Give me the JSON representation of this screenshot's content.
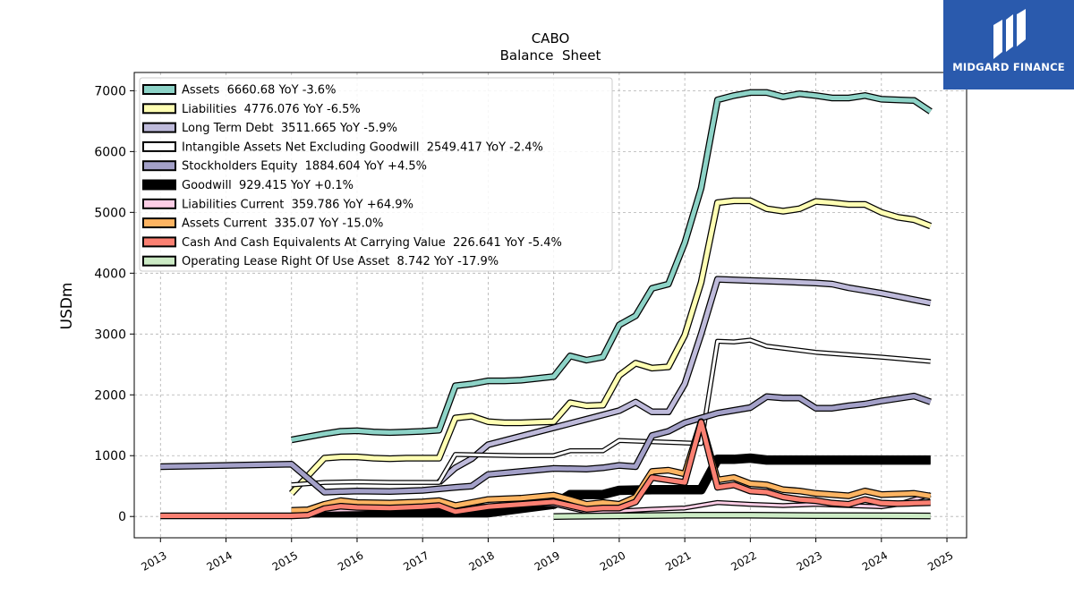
{
  "chart_data": {
    "type": "line",
    "title": "CABO",
    "subtitle": "Balance  Sheet",
    "ylabel": "USDm",
    "xlabel": "",
    "xlim": [
      2012.6,
      2025.3
    ],
    "ylim": [
      -350,
      7300
    ],
    "yticks": [
      0,
      1000,
      2000,
      3000,
      4000,
      5000,
      6000,
      7000
    ],
    "xticks": [
      2013,
      2014,
      2015,
      2016,
      2017,
      2018,
      2019,
      2020,
      2021,
      2022,
      2023,
      2024,
      2025
    ],
    "grid": true,
    "legend_position": "upper-left",
    "series": [
      {
        "name": "Assets  6660.68 YoY -3.6%",
        "color": "#8dd3c7",
        "width": 5,
        "x": [
          2015.0,
          2015.5,
          2015.75,
          2016.0,
          2016.25,
          2016.5,
          2016.75,
          2017.0,
          2017.25,
          2017.5,
          2017.75,
          2018.0,
          2018.25,
          2018.5,
          2018.75,
          2019.0,
          2019.25,
          2019.5,
          2019.75,
          2020.0,
          2020.25,
          2020.5,
          2020.75,
          2021.0,
          2021.25,
          2021.5,
          2021.75,
          2022.0,
          2022.25,
          2022.5,
          2022.75,
          2023.0,
          2023.25,
          2023.5,
          2023.75,
          2024.0,
          2024.25,
          2024.5,
          2024.75
        ],
        "y": [
          1260,
          1360,
          1400,
          1410,
          1390,
          1380,
          1390,
          1400,
          1420,
          2150,
          2180,
          2230,
          2230,
          2240,
          2270,
          2300,
          2640,
          2570,
          2620,
          3150,
          3300,
          3750,
          3820,
          4500,
          5400,
          6850,
          6920,
          6970,
          6970,
          6900,
          6950,
          6920,
          6880,
          6880,
          6920,
          6860,
          6850,
          6840,
          6660
        ]
      },
      {
        "name": "Liabilities  4776.076 YoY -6.5%",
        "color": "#ffffb3",
        "width": 5,
        "x": [
          2015.0,
          2015.5,
          2015.75,
          2016.0,
          2016.25,
          2016.5,
          2016.75,
          2017.0,
          2017.25,
          2017.5,
          2017.75,
          2018.0,
          2018.25,
          2018.5,
          2018.75,
          2019.0,
          2019.25,
          2019.5,
          2019.75,
          2020.0,
          2020.25,
          2020.5,
          2020.75,
          2021.0,
          2021.25,
          2021.5,
          2021.75,
          2022.0,
          2022.25,
          2022.5,
          2022.75,
          2023.0,
          2023.25,
          2023.5,
          2023.75,
          2024.0,
          2024.25,
          2024.5,
          2024.75
        ],
        "y": [
          380,
          960,
          980,
          980,
          960,
          950,
          960,
          960,
          960,
          1620,
          1650,
          1560,
          1540,
          1540,
          1550,
          1560,
          1870,
          1820,
          1830,
          2320,
          2520,
          2440,
          2460,
          2980,
          3850,
          5160,
          5190,
          5190,
          5060,
          5020,
          5060,
          5180,
          5160,
          5130,
          5130,
          5000,
          4920,
          4880,
          4776
        ]
      },
      {
        "name": "Long Term Debt  3511.665 YoY -5.9%",
        "color": "#bebada",
        "width": 5,
        "x": [
          2017.25,
          2017.5,
          2017.75,
          2018.0,
          2018.5,
          2019.0,
          2019.5,
          2020.0,
          2020.25,
          2020.5,
          2020.75,
          2021.0,
          2021.25,
          2021.5,
          2022.0,
          2022.5,
          2023.0,
          2023.25,
          2023.5,
          2024.0,
          2024.75
        ],
        "y": [
          560,
          800,
          950,
          1180,
          1320,
          1460,
          1600,
          1740,
          1880,
          1720,
          1720,
          2180,
          3000,
          3900,
          3880,
          3860,
          3840,
          3820,
          3760,
          3670,
          3511
        ]
      },
      {
        "name": "Intangible Assets Net Excluding Goodwill  2549.417 YoY -2.4%",
        "color": "#ffffff",
        "width": 3,
        "x": [
          2015.0,
          2015.5,
          2016.0,
          2016.5,
          2017.0,
          2017.25,
          2017.5,
          2018.0,
          2018.5,
          2019.0,
          2019.25,
          2019.5,
          2019.75,
          2020.0,
          2020.5,
          2021.0,
          2021.25,
          2021.5,
          2021.75,
          2022.0,
          2022.25,
          2023.0,
          2024.0,
          2024.75
        ],
        "y": [
          520,
          560,
          570,
          560,
          560,
          560,
          1020,
          1010,
          1000,
          1000,
          1080,
          1080,
          1080,
          1250,
          1230,
          1210,
          1200,
          2880,
          2870,
          2900,
          2800,
          2700,
          2620,
          2549
        ]
      },
      {
        "name": "Stockholders Equity  1884.604 YoY +4.5%",
        "color": "#a3a0c8",
        "width": 5,
        "x": [
          2013.0,
          2015.0,
          2015.5,
          2016.0,
          2016.5,
          2017.0,
          2017.5,
          2017.75,
          2018.0,
          2018.5,
          2019.0,
          2019.5,
          2019.75,
          2020.0,
          2020.25,
          2020.5,
          2020.75,
          2021.0,
          2021.25,
          2021.5,
          2022.0,
          2022.25,
          2022.5,
          2022.75,
          2023.0,
          2023.25,
          2023.5,
          2023.75,
          2024.0,
          2024.5,
          2024.75
        ],
        "y": [
          820,
          860,
          400,
          420,
          410,
          430,
          480,
          500,
          690,
          740,
          790,
          780,
          800,
          840,
          820,
          1330,
          1400,
          1540,
          1620,
          1700,
          1790,
          1970,
          1950,
          1950,
          1780,
          1780,
          1820,
          1850,
          1900,
          1980,
          1884
        ]
      },
      {
        "name": "Goodwill  929.415 YoY +0.1%",
        "color": "#000000",
        "width": 8,
        "x": [
          2015.0,
          2016.0,
          2017.0,
          2018.0,
          2019.0,
          2019.25,
          2019.75,
          2020.0,
          2020.5,
          2021.0,
          2021.25,
          2021.5,
          2021.75,
          2022.0,
          2022.25,
          2023.0,
          2024.0,
          2024.75
        ],
        "y": [
          60,
          60,
          60,
          60,
          200,
          360,
          360,
          430,
          440,
          440,
          440,
          940,
          940,
          960,
          929,
          929,
          929,
          929
        ]
      },
      {
        "name": "Liabilities Current  359.786 YoY +64.9%",
        "color": "#fccde5",
        "width": 3,
        "x": [
          2015.0,
          2016.0,
          2017.0,
          2018.0,
          2019.0,
          2019.5,
          2020.0,
          2020.5,
          2021.0,
          2021.5,
          2022.0,
          2022.5,
          2023.0,
          2023.5,
          2024.0,
          2024.25,
          2024.75
        ],
        "y": [
          90,
          110,
          140,
          170,
          200,
          80,
          90,
          120,
          140,
          230,
          200,
          180,
          200,
          180,
          160,
          200,
          360
        ]
      },
      {
        "name": "Assets Current  335.07 YoY -15.0%",
        "color": "#fdb462",
        "width": 5,
        "x": [
          2015.0,
          2015.25,
          2015.5,
          2015.75,
          2016.0,
          2016.5,
          2017.0,
          2017.25,
          2017.5,
          2018.0,
          2018.5,
          2019.0,
          2019.25,
          2019.5,
          2019.75,
          2020.0,
          2020.25,
          2020.5,
          2020.75,
          2021.0,
          2021.25,
          2021.5,
          2021.75,
          2022.0,
          2022.25,
          2022.5,
          2022.75,
          2023.0,
          2023.25,
          2023.5,
          2023.75,
          2024.0,
          2024.25,
          2024.5,
          2024.75
        ],
        "y": [
          100,
          110,
          200,
          260,
          230,
          220,
          240,
          260,
          180,
          280,
          300,
          350,
          280,
          200,
          230,
          200,
          320,
          740,
          760,
          700,
          1560,
          600,
          640,
          540,
          520,
          440,
          420,
          380,
          360,
          340,
          420,
          360,
          370,
          380,
          335
        ]
      },
      {
        "name": "Cash And Cash Equivalents At Carrying Value  226.641 YoY -5.4%",
        "color": "#fb8072",
        "width": 5,
        "x": [
          2013.0,
          2014.0,
          2015.0,
          2015.25,
          2015.5,
          2015.75,
          2016.0,
          2016.5,
          2017.0,
          2017.25,
          2017.5,
          2018.0,
          2018.5,
          2019.0,
          2019.25,
          2019.5,
          2019.75,
          2020.0,
          2020.25,
          2020.5,
          2020.75,
          2021.0,
          2021.25,
          2021.5,
          2021.75,
          2022.0,
          2022.25,
          2022.5,
          2022.75,
          2023.0,
          2023.25,
          2023.5,
          2023.75,
          2024.0,
          2024.25,
          2024.5,
          2024.75
        ],
        "y": [
          10,
          10,
          10,
          20,
          130,
          170,
          150,
          140,
          160,
          180,
          80,
          160,
          200,
          240,
          180,
          120,
          140,
          140,
          240,
          640,
          600,
          560,
          1550,
          480,
          520,
          420,
          400,
          320,
          280,
          260,
          220,
          200,
          280,
          220,
          210,
          220,
          226
        ]
      },
      {
        "name": "Operating Lease Right Of Use Asset  8.742 YoY -17.9%",
        "color": "#ccebc5",
        "width": 5,
        "x": [
          2019.0,
          2020.0,
          2021.0,
          2022.0,
          2023.0,
          2024.0,
          2024.75
        ],
        "y": [
          0,
          10,
          20,
          20,
          15,
          12,
          9
        ]
      }
    ]
  },
  "logo": {
    "text": "MIDGARD FINANCE"
  }
}
